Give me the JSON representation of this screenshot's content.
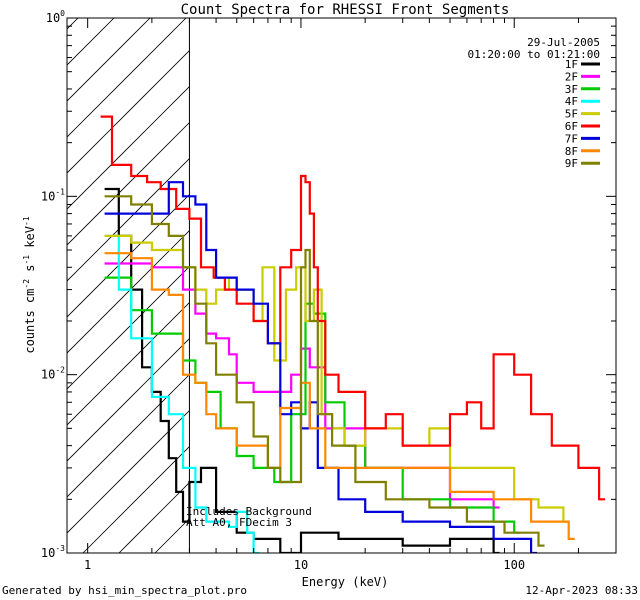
{
  "chart_data": {
    "type": "line",
    "title": "Count Spectra for RHESSI Front Segments",
    "xlabel": "Energy (keV)",
    "ylabel": "counts cm^-2 s^-1 keV^-1",
    "x_scale": "log",
    "y_scale": "log",
    "xlim": [
      0.8,
      300
    ],
    "ylim": [
      0.001,
      1
    ],
    "x_ticks": [
      {
        "v": 1,
        "label": "1"
      },
      {
        "v": 10,
        "label": "10"
      },
      {
        "v": 100,
        "label": "100"
      }
    ],
    "y_ticks": [
      {
        "v": 1,
        "base": "10",
        "exp": "0"
      },
      {
        "v": 0.1,
        "base": "10",
        "exp": "-1"
      },
      {
        "v": 0.01,
        "base": "10",
        "exp": "-2"
      },
      {
        "v": 0.001,
        "base": "10",
        "exp": "-3"
      }
    ],
    "hatched_region": [
      0.8,
      3.0
    ],
    "date": "29-Jul-2005",
    "time_range": "01:20:00 to 01:21:00",
    "annotation_line1": "Includes Background",
    "annotation_line2": "Att A0, FDecim 3",
    "series": [
      {
        "name": "1F",
        "color": "#000000",
        "x": [
          1.2,
          1.4,
          1.6,
          1.8,
          2.0,
          2.2,
          2.4,
          2.6,
          2.8,
          3.0,
          3.4,
          4.0,
          5.0,
          6.0,
          8.0,
          10.0,
          15.0,
          20.0,
          30.0,
          50.0,
          80.0
        ],
        "y": [
          0.11,
          0.06,
          0.03,
          0.011,
          0.008,
          0.0055,
          0.0034,
          0.0022,
          0.0015,
          0.0025,
          0.003,
          0.0017,
          0.0013,
          0.0012,
          0.001,
          0.0013,
          0.0012,
          0.0012,
          0.0011,
          0.0012,
          0.001
        ]
      },
      {
        "name": "2F",
        "color": "#ff00ff",
        "x": [
          1.2,
          1.6,
          2.0,
          2.4,
          2.8,
          3.2,
          3.6,
          4.0,
          4.6,
          5.0,
          6.0,
          7.0,
          9.0,
          10.0,
          11.0,
          13.0,
          20.0,
          30.0,
          50.0,
          80.0
        ],
        "y": [
          0.042,
          0.042,
          0.04,
          0.04,
          0.03,
          0.022,
          0.017,
          0.016,
          0.013,
          0.009,
          0.008,
          0.008,
          0.01,
          0.014,
          0.011,
          0.005,
          0.003,
          0.003,
          0.002,
          0.0018
        ]
      },
      {
        "name": "3F",
        "color": "#00cc00",
        "x": [
          1.2,
          1.6,
          2.0,
          2.4,
          2.8,
          3.2,
          3.6,
          4.2,
          5.0,
          6.0,
          7.5,
          9.0,
          10.5,
          11.5,
          13.0,
          16.0,
          20.0,
          30.0,
          50.0,
          80.0,
          100.0
        ],
        "y": [
          0.035,
          0.023,
          0.017,
          0.017,
          0.012,
          0.009,
          0.008,
          0.005,
          0.0035,
          0.003,
          0.0025,
          0.006,
          0.025,
          0.022,
          0.007,
          0.004,
          0.003,
          0.002,
          0.0018,
          0.0015,
          0.0013
        ]
      },
      {
        "name": "4F",
        "color": "#00ffff",
        "x": [
          1.2,
          1.4,
          1.6,
          2.0,
          2.4,
          2.8,
          3.2,
          3.6,
          4.0,
          4.6,
          5.0,
          5.6,
          6.0
        ],
        "y": [
          0.06,
          0.03,
          0.016,
          0.0075,
          0.006,
          0.003,
          0.0018,
          0.0015,
          0.0015,
          0.0014,
          0.0017,
          0.0013,
          0.001
        ]
      },
      {
        "name": "5F",
        "color": "#cccc00",
        "x": [
          1.2,
          1.6,
          2.0,
          2.4,
          2.8,
          3.2,
          3.6,
          4.0,
          4.6,
          5.0,
          6.0,
          6.6,
          7.5,
          8.5,
          9.5,
          10.5,
          11.5,
          12.5,
          14.0,
          16.0,
          20.0,
          30.0,
          40.0,
          50.0,
          70.0,
          100.0,
          130.0,
          170.0
        ],
        "y": [
          0.06,
          0.055,
          0.05,
          0.05,
          0.04,
          0.03,
          0.025,
          0.03,
          0.035,
          0.03,
          0.02,
          0.04,
          0.012,
          0.03,
          0.04,
          0.02,
          0.03,
          0.006,
          0.005,
          0.004,
          0.005,
          0.004,
          0.005,
          0.003,
          0.003,
          0.002,
          0.0018,
          0.0015
        ]
      },
      {
        "name": "6F",
        "color": "#ff0000",
        "x": [
          1.15,
          1.3,
          1.6,
          1.9,
          2.2,
          2.6,
          3.0,
          3.4,
          3.9,
          4.4,
          5.0,
          6.0,
          7.0,
          8.0,
          9.0,
          10.0,
          10.5,
          11.0,
          11.5,
          12.0,
          13.0,
          15.0,
          20.0,
          25.0,
          30.0,
          40.0,
          50.0,
          60.0,
          70.0,
          80.0,
          100.0,
          120.0,
          150.0,
          200.0,
          250.0
        ],
        "y": [
          0.28,
          0.15,
          0.13,
          0.12,
          0.11,
          0.085,
          0.075,
          0.04,
          0.035,
          0.03,
          0.025,
          0.02,
          0.015,
          0.04,
          0.05,
          0.13,
          0.12,
          0.08,
          0.04,
          0.02,
          0.01,
          0.008,
          0.005,
          0.006,
          0.004,
          0.004,
          0.006,
          0.007,
          0.005,
          0.013,
          0.01,
          0.006,
          0.004,
          0.003,
          0.002
        ]
      },
      {
        "name": "7F",
        "color": "#0000dd",
        "x": [
          1.2,
          1.6,
          2.0,
          2.4,
          2.8,
          3.2,
          3.6,
          4.0,
          5.0,
          6.0,
          7.0,
          8.0,
          9.0,
          10.0,
          11.0,
          12.0,
          15.0,
          20.0,
          30.0,
          50.0,
          80.0,
          120.0
        ],
        "y": [
          0.08,
          0.08,
          0.08,
          0.12,
          0.1,
          0.09,
          0.05,
          0.035,
          0.03,
          0.025,
          0.015,
          0.006,
          0.007,
          0.005,
          0.007,
          0.003,
          0.002,
          0.0017,
          0.0015,
          0.0014,
          0.0012,
          0.001
        ]
      },
      {
        "name": "8F",
        "color": "#ff8800",
        "x": [
          1.2,
          1.6,
          2.0,
          2.4,
          2.8,
          3.2,
          3.6,
          4.0,
          5.0,
          6.0,
          7.0,
          8.0,
          10.0,
          11.0,
          13.0,
          20.0,
          30.0,
          50.0,
          80.0,
          120.0,
          180.0
        ],
        "y": [
          0.048,
          0.045,
          0.03,
          0.028,
          0.01,
          0.009,
          0.006,
          0.005,
          0.004,
          0.004,
          0.003,
          0.0065,
          0.009,
          0.005,
          0.003,
          0.003,
          0.003,
          0.0022,
          0.002,
          0.0015,
          0.0012
        ]
      },
      {
        "name": "9F",
        "color": "#808000",
        "x": [
          1.2,
          1.6,
          2.0,
          2.4,
          2.8,
          3.2,
          3.6,
          4.0,
          5.0,
          6.0,
          7.0,
          8.0,
          10.0,
          10.5,
          11.0,
          12.0,
          14.0,
          18.0,
          25.0,
          40.0,
          60.0,
          90.0,
          130.0
        ],
        "y": [
          0.1,
          0.09,
          0.07,
          0.06,
          0.04,
          0.025,
          0.015,
          0.01,
          0.007,
          0.0045,
          0.003,
          0.0025,
          0.04,
          0.05,
          0.02,
          0.006,
          0.004,
          0.0025,
          0.002,
          0.0018,
          0.0015,
          0.0013,
          0.0011
        ]
      }
    ]
  },
  "footer": {
    "generated_by": "Generated by hsi_min_spectra_plot.pro",
    "timestamp": "12-Apr-2023 08:33"
  }
}
